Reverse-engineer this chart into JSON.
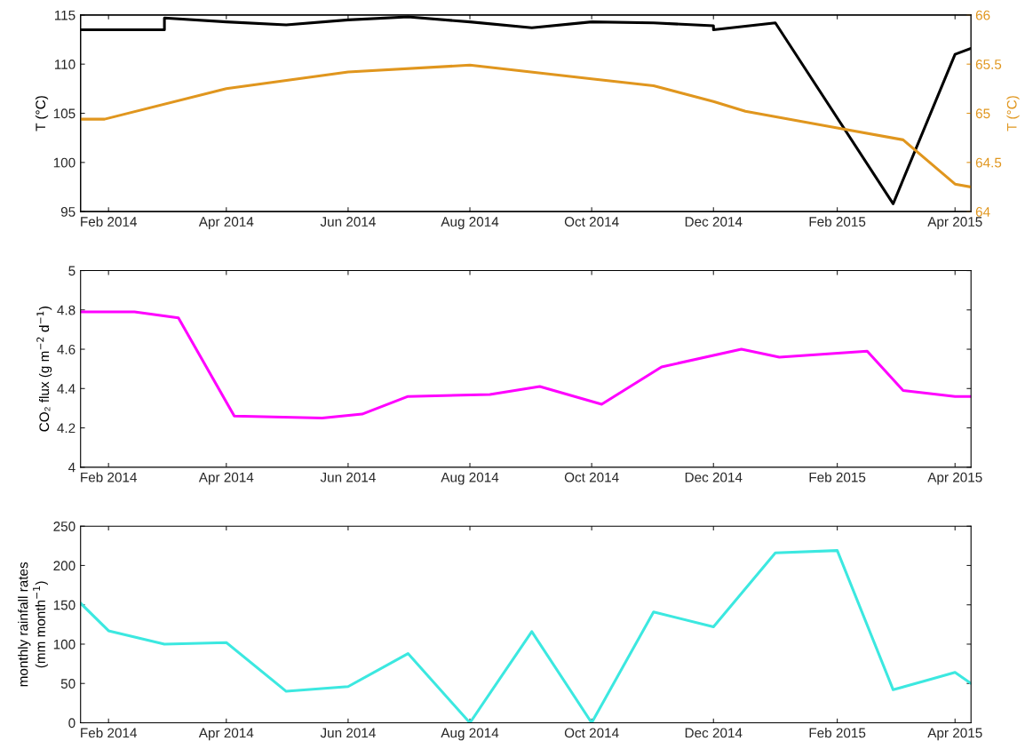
{
  "chart_data": [
    {
      "type": "line",
      "ylabel": "T (°C)",
      "y2label": "T (°C)",
      "xlim": [
        "2014-01-18",
        "2015-04-09"
      ],
      "xticks": [
        {
          "value": "2014-02-01",
          "label": "Feb 2014"
        },
        {
          "value": "2014-04-01",
          "label": "Apr 2014"
        },
        {
          "value": "2014-06-01",
          "label": "Jun 2014"
        },
        {
          "value": "2014-08-01",
          "label": "Aug 2014"
        },
        {
          "value": "2014-10-01",
          "label": "Oct 2014"
        },
        {
          "value": "2014-12-01",
          "label": "Dec 2014"
        },
        {
          "value": "2015-02-01",
          "label": "Feb 2015"
        },
        {
          "value": "2015-04-01",
          "label": "Apr 2015"
        }
      ],
      "ylim": [
        95,
        115
      ],
      "yticks": [
        95,
        100,
        105,
        110,
        115
      ],
      "y2lim": [
        64,
        66
      ],
      "y2ticks": [
        64,
        {
          "value": 64.5,
          "label": "64.5"
        },
        65,
        {
          "value": 65.5,
          "label": "65.5"
        },
        66
      ],
      "grid": false,
      "series": [
        {
          "color": "#000000",
          "x": [
            "2014-01-18",
            "2014-03-01",
            "2014-03-01",
            "2014-04-01",
            "2014-05-01",
            "2014-06-01",
            "2014-07-01",
            "2014-08-01",
            "2014-09-01",
            "2014-10-01",
            "2014-11-01",
            "2014-12-01",
            "2014-12-01",
            "2015-01-01",
            "2015-03-01",
            "2015-04-01",
            "2015-04-09"
          ],
          "values": [
            113.5,
            113.5,
            114.7,
            114.3,
            114.0,
            114.5,
            114.8,
            114.3,
            113.7,
            114.3,
            114.2,
            113.9,
            113.5,
            114.2,
            95.8,
            111.0,
            111.6
          ]
        },
        {
          "color": "#e0961e",
          "axis": "y2",
          "x": [
            "2014-01-18",
            "2014-01-30",
            "2014-04-01",
            "2014-06-01",
            "2014-08-01",
            "2014-10-01",
            "2014-11-01",
            "2014-12-01",
            "2014-12-17",
            "2015-02-01",
            "2015-03-06",
            "2015-04-01",
            "2015-04-09"
          ],
          "values": [
            64.94,
            64.94,
            65.25,
            65.42,
            65.49,
            65.35,
            65.28,
            65.12,
            65.02,
            64.85,
            64.73,
            64.28,
            64.25
          ]
        }
      ]
    },
    {
      "type": "line",
      "ylabel": "CO₂ flux (g m$^{−2}$ d$^{−1}$)",
      "xlim": [
        "2014-01-18",
        "2015-04-09"
      ],
      "xticks": [
        {
          "value": "2014-02-01",
          "label": "Feb 2014"
        },
        {
          "value": "2014-04-01",
          "label": "Apr 2014"
        },
        {
          "value": "2014-06-01",
          "label": "Jun 2014"
        },
        {
          "value": "2014-08-01",
          "label": "Aug 2014"
        },
        {
          "value": "2014-10-01",
          "label": "Oct 2014"
        },
        {
          "value": "2014-12-01",
          "label": "Dec 2014"
        },
        {
          "value": "2015-02-01",
          "label": "Feb 2015"
        },
        {
          "value": "2015-04-01",
          "label": "Apr 2015"
        }
      ],
      "ylim": [
        4,
        5
      ],
      "yticks": [
        4,
        {
          "value": 4.2,
          "label": "4.2"
        },
        {
          "value": 4.4,
          "label": "4.4"
        },
        {
          "value": 4.6,
          "label": "4.6"
        },
        {
          "value": 4.8,
          "label": "4.8"
        },
        5
      ],
      "grid": false,
      "series": [
        {
          "color": "#ff00ff",
          "x": [
            "2014-01-18",
            "2014-02-14",
            "2014-03-08",
            "2014-04-05",
            "2014-05-19",
            "2014-06-08",
            "2014-07-01",
            "2014-08-11",
            "2014-09-05",
            "2014-10-06",
            "2014-11-05",
            "2014-12-15",
            "2015-01-03",
            "2015-02-16",
            "2015-03-06",
            "2015-04-01",
            "2015-04-09"
          ],
          "values": [
            4.79,
            4.79,
            4.76,
            4.26,
            4.25,
            4.27,
            4.36,
            4.37,
            4.41,
            4.32,
            4.51,
            4.6,
            4.56,
            4.59,
            4.39,
            4.36,
            4.36
          ]
        }
      ]
    },
    {
      "type": "line",
      "ylabel": "monthly rainfall rates\n(mm month$^{−1}$)",
      "xlim": [
        "2014-01-18",
        "2015-04-09"
      ],
      "xticks": [
        {
          "value": "2014-02-01",
          "label": "Feb 2014"
        },
        {
          "value": "2014-04-01",
          "label": "Apr 2014"
        },
        {
          "value": "2014-06-01",
          "label": "Jun 2014"
        },
        {
          "value": "2014-08-01",
          "label": "Aug 2014"
        },
        {
          "value": "2014-10-01",
          "label": "Oct 2014"
        },
        {
          "value": "2014-12-01",
          "label": "Dec 2014"
        },
        {
          "value": "2015-02-01",
          "label": "Feb 2015"
        },
        {
          "value": "2015-04-01",
          "label": "Apr 2015"
        }
      ],
      "ylim": [
        0,
        250
      ],
      "yticks": [
        0,
        50,
        100,
        150,
        200,
        250
      ],
      "grid": false,
      "series": [
        {
          "color": "#3ce8e0",
          "x": [
            "2014-01-18",
            "2014-02-01",
            "2014-03-01",
            "2014-04-01",
            "2014-05-01",
            "2014-06-01",
            "2014-07-01",
            "2014-08-01",
            "2014-09-01",
            "2014-10-01",
            "2014-11-01",
            "2014-12-01",
            "2015-01-01",
            "2015-02-01",
            "2015-03-01",
            "2015-04-01",
            "2015-04-09"
          ],
          "values": [
            152,
            117,
            100,
            102,
            40,
            46,
            88,
            0,
            116,
            0,
            141,
            122,
            216,
            219,
            42,
            64,
            50
          ]
        }
      ]
    }
  ]
}
